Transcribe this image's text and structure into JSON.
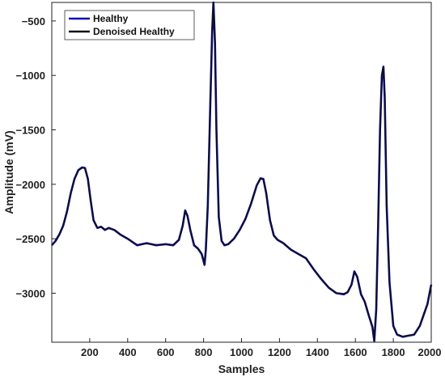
{
  "chart_data": {
    "type": "line",
    "title": "",
    "xlabel": "Samples",
    "ylabel": "Amplitude (mV)",
    "xlim": [
      0,
      2000
    ],
    "ylim": [
      -3450,
      -330
    ],
    "xticks": [
      200,
      400,
      600,
      800,
      1000,
      1200,
      1400,
      1600,
      1800,
      2000
    ],
    "yticks": [
      -500,
      -1000,
      -1500,
      -2000,
      -2500,
      -3000
    ],
    "grid": false,
    "legend_position": "top-left",
    "series": [
      {
        "name": "Healthy",
        "color": "#0a0ab4",
        "x": [
          0,
          20,
          40,
          60,
          80,
          100,
          120,
          140,
          160,
          175,
          190,
          205,
          220,
          240,
          260,
          280,
          300,
          330,
          360,
          400,
          450,
          500,
          550,
          600,
          640,
          670,
          690,
          703,
          715,
          730,
          750,
          770,
          790,
          805,
          812,
          822,
          835,
          845,
          852,
          860,
          868,
          880,
          895,
          910,
          930,
          960,
          990,
          1020,
          1050,
          1080,
          1100,
          1115,
          1130,
          1150,
          1170,
          1190,
          1220,
          1260,
          1300,
          1340,
          1380,
          1420,
          1460,
          1500,
          1540,
          1560,
          1580,
          1595,
          1610,
          1630,
          1650,
          1670,
          1690,
          1700,
          1710,
          1720,
          1730,
          1740,
          1748,
          1755,
          1765,
          1780,
          1800,
          1820,
          1850,
          1880,
          1910,
          1940,
          1960,
          1980,
          2000
        ],
        "y": [
          -2560,
          -2520,
          -2460,
          -2380,
          -2250,
          -2080,
          -1950,
          -1870,
          -1845,
          -1850,
          -1950,
          -2150,
          -2330,
          -2400,
          -2390,
          -2420,
          -2400,
          -2420,
          -2460,
          -2500,
          -2560,
          -2540,
          -2560,
          -2550,
          -2560,
          -2510,
          -2380,
          -2240,
          -2290,
          -2420,
          -2560,
          -2590,
          -2640,
          -2740,
          -2600,
          -2200,
          -1300,
          -600,
          -330,
          -700,
          -1500,
          -2300,
          -2520,
          -2560,
          -2550,
          -2500,
          -2420,
          -2320,
          -2180,
          -2010,
          -1945,
          -1950,
          -2080,
          -2330,
          -2470,
          -2510,
          -2540,
          -2600,
          -2640,
          -2680,
          -2780,
          -2870,
          -2950,
          -3000,
          -3010,
          -2990,
          -2920,
          -2800,
          -2850,
          -3010,
          -3080,
          -3200,
          -3310,
          -3440,
          -3150,
          -2400,
          -1500,
          -1000,
          -920,
          -1200,
          -2200,
          -2900,
          -3300,
          -3380,
          -3400,
          -3390,
          -3380,
          -3300,
          -3200,
          -3100,
          -2920
        ]
      },
      {
        "name": "Denoised Healthy",
        "color": "#111111",
        "x": [
          0,
          20,
          40,
          60,
          80,
          100,
          120,
          140,
          160,
          175,
          190,
          205,
          220,
          240,
          260,
          280,
          300,
          330,
          360,
          400,
          450,
          500,
          550,
          600,
          640,
          670,
          690,
          703,
          715,
          730,
          750,
          770,
          790,
          805,
          812,
          822,
          835,
          845,
          852,
          860,
          868,
          880,
          895,
          910,
          930,
          960,
          990,
          1020,
          1050,
          1080,
          1100,
          1115,
          1130,
          1150,
          1170,
          1190,
          1220,
          1260,
          1300,
          1340,
          1380,
          1420,
          1460,
          1500,
          1540,
          1560,
          1580,
          1595,
          1610,
          1630,
          1650,
          1670,
          1690,
          1700,
          1710,
          1720,
          1730,
          1740,
          1748,
          1755,
          1765,
          1780,
          1800,
          1820,
          1850,
          1880,
          1910,
          1940,
          1960,
          1980,
          2000
        ],
        "y": [
          -2555,
          -2518,
          -2458,
          -2378,
          -2250,
          -2080,
          -1950,
          -1872,
          -1850,
          -1853,
          -1950,
          -2148,
          -2328,
          -2398,
          -2392,
          -2415,
          -2405,
          -2420,
          -2458,
          -2500,
          -2555,
          -2545,
          -2555,
          -2552,
          -2555,
          -2508,
          -2380,
          -2245,
          -2292,
          -2418,
          -2555,
          -2588,
          -2635,
          -2730,
          -2600,
          -2200,
          -1300,
          -610,
          -340,
          -710,
          -1500,
          -2300,
          -2518,
          -2555,
          -2550,
          -2500,
          -2420,
          -2320,
          -2180,
          -2010,
          -1950,
          -1955,
          -2080,
          -2328,
          -2468,
          -2508,
          -2540,
          -2598,
          -2640,
          -2680,
          -2778,
          -2868,
          -2948,
          -2998,
          -3005,
          -2988,
          -2920,
          -2805,
          -2852,
          -3005,
          -3078,
          -3198,
          -3305,
          -3430,
          -3150,
          -2400,
          -1500,
          -1005,
          -925,
          -1205,
          -2200,
          -2898,
          -3298,
          -3378,
          -3398,
          -3388,
          -3378,
          -3298,
          -3198,
          -3098,
          -2925
        ]
      }
    ]
  }
}
